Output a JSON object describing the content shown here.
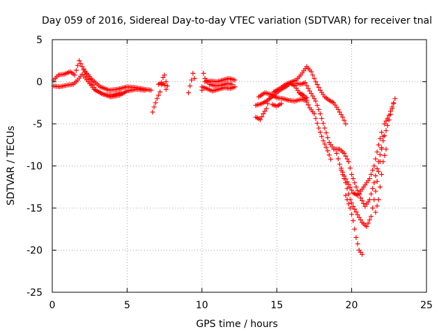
{
  "chart_data": {
    "type": "scatter",
    "title": "Day 059 of 2016, Sidereal Day-to-day VTEC variation (SDTVAR) for receiver tnal",
    "xlabel": "GPS time / hours",
    "ylabel": "SDTVAR / TECUs",
    "xlim": [
      0,
      25
    ],
    "ylim": [
      -25,
      5
    ],
    "xticks": [
      0,
      5,
      10,
      15,
      20,
      25
    ],
    "yticks": [
      -25,
      -20,
      -15,
      -10,
      -5,
      0,
      5
    ],
    "grid": true,
    "marker": "+",
    "series": [
      {
        "name": "SDTVAR",
        "color": "#ff0000",
        "tracks": [
          [
            [
              0.1,
              0.2
            ],
            [
              0.4,
              0.8
            ],
            [
              0.8,
              0.9
            ],
            [
              1.2,
              1.2
            ],
            [
              1.5,
              0.8
            ],
            [
              1.8,
              2.5
            ],
            [
              2.0,
              1.8
            ],
            [
              2.3,
              1.0
            ],
            [
              2.7,
              0.2
            ],
            [
              3.2,
              -0.6
            ],
            [
              3.8,
              -1.0
            ],
            [
              4.3,
              -0.9
            ],
            [
              5.0,
              -0.6
            ],
            [
              5.6,
              -0.7
            ],
            [
              6.2,
              -0.9
            ],
            [
              6.6,
              -1.0
            ]
          ],
          [
            [
              0.1,
              -0.5
            ],
            [
              0.5,
              -0.6
            ],
            [
              1.0,
              -0.4
            ],
            [
              1.4,
              -0.3
            ],
            [
              1.7,
              0.2
            ],
            [
              2.0,
              0.9
            ],
            [
              2.4,
              0.0
            ],
            [
              2.8,
              -0.9
            ],
            [
              3.3,
              -1.4
            ],
            [
              3.9,
              -1.8
            ],
            [
              4.5,
              -1.6
            ],
            [
              5.0,
              -1.1
            ],
            [
              5.6,
              -0.9
            ],
            [
              6.2,
              -1.0
            ]
          ],
          [
            [
              2.1,
              1.4
            ],
            [
              2.5,
              0.3
            ],
            [
              2.9,
              -1.0
            ],
            [
              3.4,
              -1.5
            ],
            [
              4.0,
              -1.6
            ],
            [
              4.6,
              -1.3
            ]
          ],
          [
            [
              6.7,
              -3.6
            ],
            [
              6.8,
              -3.0
            ],
            [
              7.0,
              -2.0
            ],
            [
              7.2,
              -1.2
            ],
            [
              7.4,
              0.5
            ],
            [
              7.5,
              0.8
            ],
            [
              7.6,
              0.0
            ],
            [
              7.7,
              -0.5
            ]
          ],
          [
            [
              7.1,
              -0.3
            ],
            [
              7.3,
              -0.1
            ],
            [
              7.5,
              -0.4
            ],
            [
              7.6,
              -0.9
            ]
          ],
          [
            [
              9.1,
              -1.3
            ],
            [
              9.2,
              -0.5
            ],
            [
              9.3,
              0.2
            ],
            [
              9.4,
              1.0
            ],
            [
              9.5,
              0.4
            ]
          ],
          [
            [
              10.0,
              -1.0
            ],
            [
              10.1,
              1.0
            ],
            [
              10.2,
              0.4
            ],
            [
              10.5,
              -0.3
            ],
            [
              10.9,
              -0.5
            ],
            [
              11.3,
              -0.4
            ],
            [
              11.7,
              -0.2
            ],
            [
              12.0,
              -0.3
            ]
          ],
          [
            [
              10.0,
              -0.6
            ],
            [
              10.3,
              -0.8
            ],
            [
              10.7,
              -1.1
            ],
            [
              11.1,
              -0.9
            ],
            [
              11.5,
              -0.7
            ],
            [
              11.9,
              -0.8
            ],
            [
              12.2,
              -0.6
            ]
          ],
          [
            [
              10.2,
              0.0
            ],
            [
              10.6,
              0.1
            ],
            [
              11.0,
              0.0
            ],
            [
              11.4,
              0.2
            ],
            [
              11.8,
              0.4
            ],
            [
              12.2,
              0.2
            ]
          ],
          [
            [
              13.6,
              -4.2
            ],
            [
              13.9,
              -4.5
            ],
            [
              14.1,
              -3.8
            ],
            [
              14.3,
              -3.2
            ],
            [
              14.5,
              -2.0
            ],
            [
              14.8,
              -1.2
            ],
            [
              15.2,
              -0.8
            ],
            [
              15.6,
              -0.3
            ],
            [
              16.0,
              0.0
            ],
            [
              16.3,
              0.2
            ],
            [
              16.6,
              0.8
            ],
            [
              16.8,
              1.3
            ],
            [
              17.0,
              1.8
            ],
            [
              17.3,
              1.2
            ],
            [
              17.6,
              0.0
            ],
            [
              17.9,
              -1.0
            ],
            [
              18.2,
              -1.8
            ],
            [
              18.5,
              -2.2
            ],
            [
              18.8,
              -2.5
            ],
            [
              19.1,
              -3.3
            ],
            [
              19.4,
              -4.2
            ],
            [
              19.6,
              -5.0
            ]
          ],
          [
            [
              13.6,
              -2.8
            ],
            [
              14.0,
              -2.6
            ],
            [
              14.4,
              -2.2
            ],
            [
              14.8,
              -1.6
            ],
            [
              15.2,
              -1.0
            ],
            [
              15.6,
              -0.6
            ],
            [
              15.9,
              -0.2
            ],
            [
              16.2,
              -0.5
            ],
            [
              16.5,
              -1.3
            ],
            [
              16.8,
              -1.8
            ],
            [
              17.0,
              -1.9
            ]
          ],
          [
            [
              13.8,
              -1.8
            ],
            [
              14.2,
              -1.3
            ],
            [
              14.6,
              -1.5
            ],
            [
              15.0,
              -1.9
            ],
            [
              15.4,
              -2.0
            ],
            [
              15.8,
              -2.2
            ],
            [
              16.2,
              -2.3
            ],
            [
              16.6,
              -2.1
            ],
            [
              17.0,
              -2.2
            ]
          ],
          [
            [
              14.7,
              -2.7
            ],
            [
              15.0,
              -2.9
            ],
            [
              15.3,
              -2.6
            ]
          ],
          [
            [
              16.3,
              -0.2
            ],
            [
              16.6,
              -0.3
            ],
            [
              16.9,
              -0.1
            ],
            [
              17.1,
              -0.8
            ],
            [
              17.3,
              -1.4
            ],
            [
              17.6,
              -2.3
            ],
            [
              17.9,
              -3.8
            ],
            [
              18.2,
              -5.5
            ],
            [
              18.5,
              -7.2
            ],
            [
              18.8,
              -8.0
            ],
            [
              19.2,
              -8.0
            ],
            [
              19.5,
              -8.5
            ],
            [
              19.8,
              -9.5
            ],
            [
              20.0,
              -11.0
            ],
            [
              20.3,
              -12.5
            ],
            [
              20.6,
              -13.8
            ],
            [
              20.9,
              -14.8
            ],
            [
              21.2,
              -14.0
            ],
            [
              21.5,
              -12.0
            ],
            [
              21.8,
              -9.5
            ],
            [
              22.1,
              -7.0
            ],
            [
              22.4,
              -5.2
            ],
            [
              22.7,
              -3.2
            ],
            [
              22.9,
              -2.0
            ]
          ],
          [
            [
              16.5,
              -1.3
            ],
            [
              16.8,
              -1.6
            ],
            [
              17.0,
              -2.4
            ],
            [
              17.2,
              -3.1
            ],
            [
              17.5,
              -3.8
            ],
            [
              17.8,
              -5.5
            ],
            [
              18.1,
              -7.0
            ],
            [
              18.4,
              -8.2
            ],
            [
              18.6,
              -9.2
            ]
          ],
          [
            [
              19.6,
              -13.5
            ],
            [
              19.9,
              -15.0
            ],
            [
              20.1,
              -16.5
            ],
            [
              20.3,
              -18.5
            ],
            [
              20.5,
              -20.0
            ],
            [
              20.7,
              -20.5
            ]
          ],
          [
            [
              19.3,
              -10.5
            ],
            [
              19.6,
              -12.0
            ],
            [
              19.9,
              -14.0
            ],
            [
              20.1,
              -14.8
            ],
            [
              20.4,
              -15.8
            ],
            [
              20.7,
              -16.7
            ],
            [
              21.0,
              -17.2
            ],
            [
              21.3,
              -16.0
            ],
            [
              21.6,
              -13.0
            ],
            [
              21.9,
              -9.5
            ],
            [
              22.2,
              -5.0
            ],
            [
              22.5,
              -4.0
            ],
            [
              22.8,
              -2.5
            ]
          ],
          [
            [
              19.0,
              -8.5
            ],
            [
              19.2,
              -9.8
            ],
            [
              19.5,
              -11.2
            ],
            [
              19.8,
              -12.2
            ],
            [
              20.1,
              -13.2
            ],
            [
              20.4,
              -13.5
            ],
            [
              20.6,
              -13.0
            ],
            [
              20.8,
              -12.5
            ],
            [
              21.0,
              -12.0
            ],
            [
              21.2,
              -11.5
            ],
            [
              21.5,
              -10.0
            ],
            [
              21.8,
              -7.5
            ],
            [
              22.0,
              -6.0
            ]
          ],
          [
            [
              21.6,
              -15.5
            ],
            [
              21.8,
              -14.0
            ],
            [
              22.0,
              -11.0
            ],
            [
              22.1,
              -9.5
            ],
            [
              22.3,
              -8.0
            ]
          ]
        ]
      }
    ]
  }
}
